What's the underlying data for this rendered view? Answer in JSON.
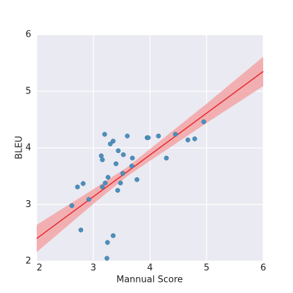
{
  "chart_data": {
    "type": "scatter",
    "xlabel": "Mannual Score",
    "ylabel": "BLEU",
    "xlim": [
      2,
      6
    ],
    "ylim": [
      2,
      6
    ],
    "xticks": [
      2,
      3,
      4,
      5,
      6
    ],
    "yticks": [
      2,
      3,
      4,
      5,
      6
    ],
    "grid": true,
    "series": [
      {
        "color": "#4c8fbd",
        "x": [
          2.62,
          2.72,
          2.82,
          2.78,
          2.92,
          3.2,
          3.14,
          3.16,
          3.16,
          3.21,
          3.26,
          3.3,
          3.35,
          3.25,
          3.35,
          3.24,
          3.4,
          3.44,
          3.43,
          3.48,
          3.52,
          3.53,
          3.6,
          3.68,
          3.69,
          3.77,
          3.95,
          3.97,
          4.15,
          4.29,
          4.45,
          4.67,
          4.79,
          4.95
        ],
        "values": [
          2.98,
          3.31,
          3.37,
          2.55,
          3.09,
          4.24,
          3.86,
          3.79,
          3.31,
          3.38,
          3.48,
          4.07,
          4.12,
          2.33,
          2.45,
          2.05,
          3.72,
          3.95,
          3.25,
          3.38,
          3.55,
          3.88,
          4.21,
          3.68,
          3.82,
          3.44,
          4.18,
          4.18,
          4.21,
          3.82,
          4.24,
          4.14,
          4.16,
          4.46
        ]
      }
    ],
    "regression": {
      "color": "#e8262a",
      "x": [
        2,
        6
      ],
      "values": [
        2.4,
        5.35
      ]
    },
    "band": {
      "color": "#f4a0a0",
      "x": [
        2,
        3,
        3.6,
        4,
        5,
        6
      ],
      "upper": [
        2.64,
        3.27,
        3.66,
        3.98,
        4.78,
        5.61
      ],
      "lower": [
        2.16,
        3.01,
        3.5,
        3.77,
        4.44,
        5.09
      ]
    }
  }
}
